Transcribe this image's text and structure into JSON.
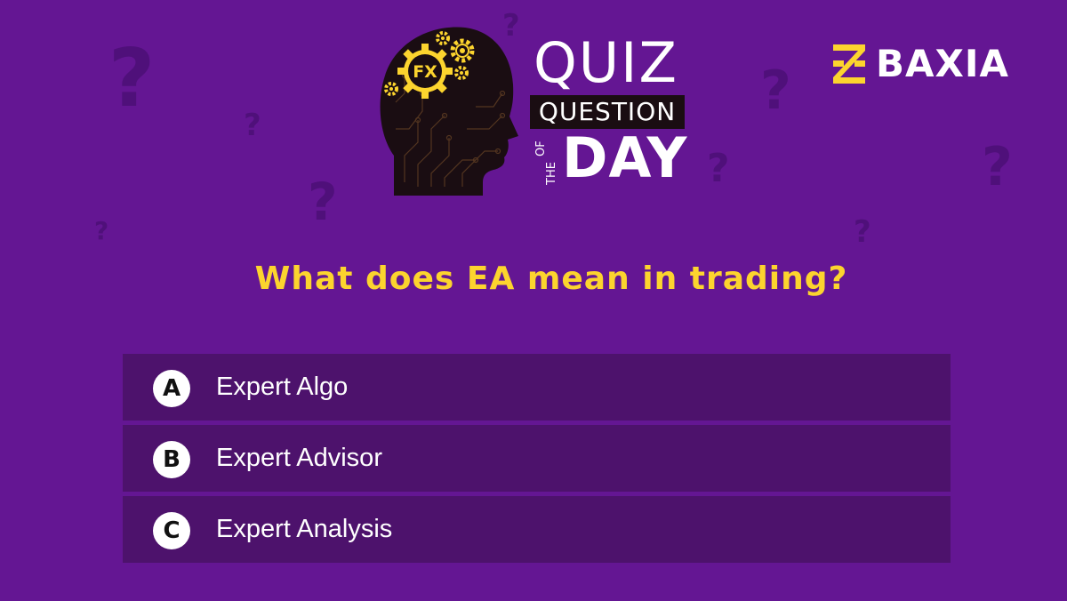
{
  "colors": {
    "background": "#641693",
    "question_mark": "#4f107a",
    "accent_yellow": "#fcd42e",
    "option_bg": "#4d126c",
    "logo_dark": "#1a0d12"
  },
  "header": {
    "head_badge": "FX",
    "quiz": "QUIZ",
    "question": "QUESTION",
    "of": "OF",
    "the": "THE",
    "day": "DAY"
  },
  "brand": {
    "name": "BAXIA",
    "icon": "baxia-logo-icon"
  },
  "question_text": "What does EA mean in trading?",
  "options": [
    {
      "letter": "A",
      "text": "Expert Algo"
    },
    {
      "letter": "B",
      "text": "Expert Advisor"
    },
    {
      "letter": "C",
      "text": "Expert Analysis"
    }
  ],
  "decor": {
    "question_mark": "?"
  }
}
